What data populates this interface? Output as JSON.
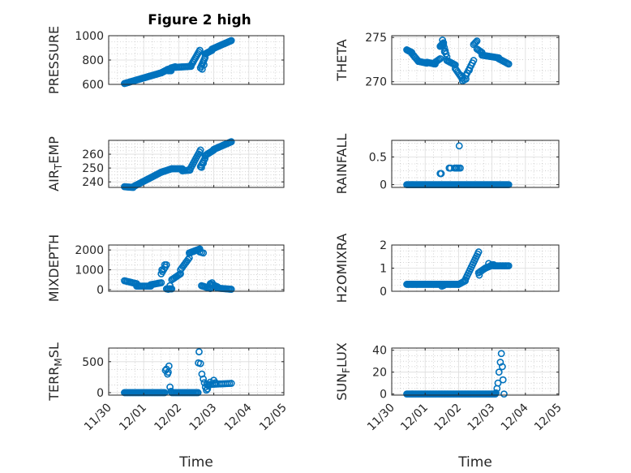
{
  "figure": {
    "title": "Figure 2 high",
    "marker_color": "#0072bd"
  },
  "chart_data": [
    {
      "type": "scatter",
      "ylabel": "PRESSURE",
      "ylim": [
        600,
        1000
      ],
      "yticks": [
        600,
        800,
        1000
      ],
      "ytick_labels": [
        "600",
        "800",
        "1000"
      ],
      "segments": [
        {
          "x": [
            0.45,
            1.5
          ],
          "y0": 607,
          "y1": 695,
          "n": 34
        },
        {
          "x": [
            1.5,
            1.7
          ],
          "y0": 695,
          "y1": 725,
          "n": 10
        },
        {
          "x": [
            1.7,
            1.78
          ],
          "y0": 712,
          "y1": 712,
          "n": 4
        },
        {
          "x": [
            1.78,
            1.9
          ],
          "y0": 735,
          "y1": 745,
          "n": 5
        },
        {
          "x": [
            1.9,
            2.35
          ],
          "y0": 740,
          "y1": 748,
          "n": 12
        },
        {
          "x": [
            2.35,
            2.6
          ],
          "y0": 755,
          "y1": 880,
          "n": 10
        },
        {
          "x": [
            2.62,
            2.75
          ],
          "y0": 735,
          "y1": 820,
          "n": 7
        },
        {
          "x": [
            2.75,
            2.95
          ],
          "y0": 850,
          "y1": 880,
          "n": 8
        },
        {
          "x": [
            2.95,
            3.5
          ],
          "y0": 890,
          "y1": 960,
          "n": 18
        }
      ],
      "extra": [
        [
          2.67,
          725
        ],
        [
          2.72,
          760
        ]
      ]
    },
    {
      "type": "scatter",
      "ylabel": "THETA",
      "ylim": [
        269.7,
        275.2
      ],
      "yticks": [
        270,
        275
      ],
      "ytick_labels": [
        "270",
        "275"
      ],
      "segments": [
        {
          "x": [
            0.45,
            0.6
          ],
          "y0": 273.6,
          "y1": 273.3,
          "n": 6
        },
        {
          "x": [
            0.6,
            0.8
          ],
          "y0": 273.2,
          "y1": 272.3,
          "n": 7
        },
        {
          "x": [
            0.8,
            1.05
          ],
          "y0": 272.3,
          "y1": 272.1,
          "n": 8
        },
        {
          "x": [
            1.05,
            1.3
          ],
          "y0": 272.2,
          "y1": 272.0,
          "n": 8
        },
        {
          "x": [
            1.3,
            1.45
          ],
          "y0": 272.2,
          "y1": 272.6,
          "n": 5
        },
        {
          "x": [
            1.45,
            1.55
          ],
          "y0": 274.0,
          "y1": 274.4,
          "n": 5
        },
        {
          "x": [
            1.55,
            1.65
          ],
          "y0": 274.2,
          "y1": 272.8,
          "n": 5
        },
        {
          "x": [
            1.65,
            1.9
          ],
          "y0": 272.4,
          "y1": 271.9,
          "n": 8
        },
        {
          "x": [
            1.9,
            2.1
          ],
          "y0": 271.5,
          "y1": 270.4,
          "n": 7
        },
        {
          "x": [
            2.12,
            2.22
          ],
          "y0": 270.1,
          "y1": 270.3,
          "n": 3
        },
        {
          "x": [
            2.22,
            2.45
          ],
          "y0": 270.7,
          "y1": 272.4,
          "n": 7
        },
        {
          "x": [
            2.45,
            2.55
          ],
          "y0": 274.2,
          "y1": 274.6,
          "n": 4
        },
        {
          "x": [
            2.55,
            2.7
          ],
          "y0": 273.7,
          "y1": 273.3,
          "n": 5
        },
        {
          "x": [
            2.7,
            3.2
          ],
          "y0": 273.0,
          "y1": 272.7,
          "n": 14
        },
        {
          "x": [
            3.2,
            3.5
          ],
          "y0": 272.6,
          "y1": 272.0,
          "n": 9
        }
      ],
      "extra": [
        [
          1.52,
          274.7
        ],
        [
          1.58,
          273.4
        ],
        [
          2.08,
          270.7
        ],
        [
          2.32,
          271.3
        ]
      ]
    },
    {
      "type": "scatter",
      "ylabel": "AIR_TEMP",
      "ylim": [
        236,
        270
      ],
      "yticks": [
        240,
        250,
        260
      ],
      "ytick_labels": [
        "240",
        "250",
        "260"
      ],
      "segments": [
        {
          "x": [
            0.45,
            0.7
          ],
          "y0": 236.5,
          "y1": 236.0,
          "n": 9
        },
        {
          "x": [
            0.7,
            1.5
          ],
          "y0": 236.5,
          "y1": 247.0,
          "n": 26
        },
        {
          "x": [
            1.5,
            1.8
          ],
          "y0": 247.0,
          "y1": 249.5,
          "n": 10
        },
        {
          "x": [
            1.8,
            2.1
          ],
          "y0": 249.5,
          "y1": 249.5,
          "n": 9
        },
        {
          "x": [
            2.1,
            2.32
          ],
          "y0": 248.0,
          "y1": 248.5,
          "n": 6
        },
        {
          "x": [
            2.32,
            2.62
          ],
          "y0": 249.0,
          "y1": 263.0,
          "n": 11
        },
        {
          "x": [
            2.62,
            2.75
          ],
          "y0": 251.0,
          "y1": 257.0,
          "n": 6
        },
        {
          "x": [
            2.75,
            3.0
          ],
          "y0": 259.0,
          "y1": 263.0,
          "n": 9
        },
        {
          "x": [
            3.0,
            3.5
          ],
          "y0": 263.5,
          "y1": 269.0,
          "n": 16
        }
      ],
      "extra": [
        [
          2.65,
          250.5
        ],
        [
          2.7,
          253.5
        ]
      ]
    },
    {
      "type": "scatter",
      "ylabel": "RAINFALL",
      "ylim": [
        -0.05,
        0.8
      ],
      "yticks": [
        0,
        0.5
      ],
      "ytick_labels": [
        "0",
        "0.5"
      ],
      "segments": [
        {
          "x": [
            0.45,
            3.5
          ],
          "y0": 0,
          "y1": 0,
          "n": 95
        }
      ],
      "extra": [
        [
          1.45,
          0.2
        ],
        [
          1.48,
          0.2
        ],
        [
          1.72,
          0.3
        ],
        [
          1.76,
          0.3
        ],
        [
          1.88,
          0.3
        ],
        [
          1.95,
          0.3
        ],
        [
          2.0,
          0.3
        ],
        [
          2.05,
          0.3
        ],
        [
          1.92,
          0.3
        ],
        [
          2.02,
          0.7
        ]
      ]
    },
    {
      "type": "scatter",
      "ylabel": "MIXDEPTH",
      "ylim": [
        -80,
        2250
      ],
      "yticks": [
        0,
        1000,
        2000
      ],
      "ytick_labels": [
        "0",
        "1000",
        "2000"
      ],
      "segments": [
        {
          "x": [
            0.45,
            0.8
          ],
          "y0": 450,
          "y1": 300,
          "n": 10
        },
        {
          "x": [
            0.8,
            1.2
          ],
          "y0": 180,
          "y1": 180,
          "n": 11
        },
        {
          "x": [
            1.2,
            1.5
          ],
          "y0": 250,
          "y1": 350,
          "n": 8
        },
        {
          "x": [
            1.5,
            1.65
          ],
          "y0": 800,
          "y1": 1250,
          "n": 5
        },
        {
          "x": [
            1.65,
            1.8
          ],
          "y0": 40,
          "y1": 40,
          "n": 5
        },
        {
          "x": [
            1.8,
            2.05
          ],
          "y0": 500,
          "y1": 800,
          "n": 8
        },
        {
          "x": [
            2.05,
            2.3
          ],
          "y0": 1000,
          "y1": 1600,
          "n": 8
        },
        {
          "x": [
            2.3,
            2.6
          ],
          "y0": 1850,
          "y1": 2050,
          "n": 10
        },
        {
          "x": [
            2.6,
            2.7
          ],
          "y0": 1900,
          "y1": 1850,
          "n": 3
        },
        {
          "x": [
            2.65,
            2.9
          ],
          "y0": 200,
          "y1": 60,
          "n": 8
        },
        {
          "x": [
            2.9,
            3.1
          ],
          "y0": 300,
          "y1": 150,
          "n": 6
        },
        {
          "x": [
            3.1,
            3.5
          ],
          "y0": 80,
          "y1": 20,
          "n": 12
        }
      ],
      "extra": [
        [
          1.6,
          1250
        ],
        [
          1.52,
          1000
        ],
        [
          1.75,
          200
        ],
        [
          1.7,
          20
        ],
        [
          2.95,
          350
        ],
        [
          2.9,
          250
        ]
      ]
    },
    {
      "type": "scatter",
      "ylabel": "H2OMIXRA",
      "ylim": [
        0,
        2
      ],
      "yticks": [
        0,
        1,
        2
      ],
      "ytick_labels": [
        "0",
        "1",
        "2"
      ],
      "segments": [
        {
          "x": [
            0.45,
            1.45
          ],
          "y0": 0.3,
          "y1": 0.3,
          "n": 30
        },
        {
          "x": [
            1.45,
            2.0
          ],
          "y0": 0.3,
          "y1": 0.3,
          "n": 16
        },
        {
          "x": [
            2.0,
            2.2
          ],
          "y0": 0.3,
          "y1": 0.45,
          "n": 6
        },
        {
          "x": [
            2.2,
            2.6
          ],
          "y0": 0.5,
          "y1": 1.7,
          "n": 14
        },
        {
          "x": [
            2.6,
            2.8
          ],
          "y0": 0.8,
          "y1": 1.0,
          "n": 6
        },
        {
          "x": [
            2.8,
            3.05
          ],
          "y0": 1.0,
          "y1": 1.15,
          "n": 8
        },
        {
          "x": [
            3.05,
            3.5
          ],
          "y0": 1.1,
          "y1": 1.1,
          "n": 13
        }
      ],
      "extra": [
        [
          1.5,
          0.22
        ],
        [
          1.55,
          0.25
        ],
        [
          2.62,
          0.7
        ],
        [
          2.9,
          1.2
        ],
        [
          3.0,
          1.15
        ]
      ]
    },
    {
      "type": "scatter",
      "ylabel": "TERR_MSL",
      "ylim": [
        -40,
        720
      ],
      "yticks": [
        0,
        500
      ],
      "ytick_labels": [
        "0",
        "500"
      ],
      "segments": [
        {
          "x": [
            0.45,
            1.6
          ],
          "y0": 0,
          "y1": 0,
          "n": 36
        },
        {
          "x": [
            1.8,
            2.55
          ],
          "y0": 0,
          "y1": 0,
          "n": 22
        },
        {
          "x": [
            2.8,
            3.5
          ],
          "y0": 130,
          "y1": 150,
          "n": 14
        }
      ],
      "extra": [
        [
          1.62,
          360
        ],
        [
          1.65,
          380
        ],
        [
          1.68,
          300
        ],
        [
          1.7,
          330
        ],
        [
          1.72,
          430
        ],
        [
          1.75,
          90
        ],
        [
          1.78,
          20
        ],
        [
          2.58,
          660
        ],
        [
          2.56,
          480
        ],
        [
          2.62,
          470
        ],
        [
          2.66,
          300
        ],
        [
          2.7,
          220
        ],
        [
          2.73,
          160
        ],
        [
          2.76,
          90
        ],
        [
          2.79,
          40
        ],
        [
          2.82,
          60
        ],
        [
          2.85,
          110
        ],
        [
          2.9,
          170
        ],
        [
          3.0,
          200
        ],
        [
          3.05,
          160
        ]
      ]
    },
    {
      "type": "scatter",
      "ylabel": "SUN_FLUX",
      "ylim": [
        -1,
        42
      ],
      "yticks": [
        0,
        20,
        40
      ],
      "ytick_labels": [
        "0",
        "20",
        "40"
      ],
      "segments": [
        {
          "x": [
            0.45,
            3.1
          ],
          "y0": 0,
          "y1": 0,
          "n": 80
        }
      ],
      "extra": [
        [
          3.12,
          1
        ],
        [
          3.15,
          5
        ],
        [
          3.18,
          10
        ],
        [
          3.21,
          20
        ],
        [
          3.25,
          29
        ],
        [
          3.28,
          37
        ],
        [
          3.31,
          25
        ],
        [
          3.33,
          13
        ],
        [
          3.36,
          0
        ]
      ]
    }
  ],
  "x_axis": {
    "range": [
      0,
      5
    ],
    "tick_labels": [
      "11/30",
      "12/01",
      "12/02",
      "12/03",
      "12/04",
      "12/05"
    ],
    "label": "Time"
  }
}
